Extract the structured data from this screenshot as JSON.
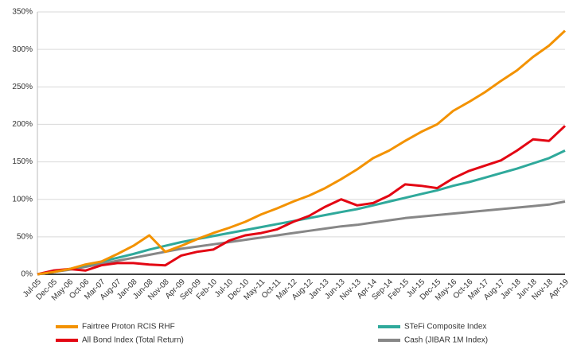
{
  "chart_data": {
    "type": "line",
    "categories": [
      "Jul-05",
      "Dec-05",
      "May-06",
      "Oct-06",
      "Mar-07",
      "Aug-07",
      "Jan-08",
      "Jun-08",
      "Nov-08",
      "Apr-09",
      "Sep-09",
      "Feb-10",
      "Jul-10",
      "Dec-10",
      "May-11",
      "Oct-11",
      "Mar-12",
      "Aug-12",
      "Jan-13",
      "Jun-13",
      "Nov-13",
      "Apr-14",
      "Sep-14",
      "Feb-15",
      "Jul-15",
      "Dec-15",
      "May-16",
      "Oct-16",
      "Mar-17",
      "Aug-17",
      "Jan-18",
      "Jun-18",
      "Nov-18",
      "Apr-19"
    ],
    "series": [
      {
        "name": "Fairtree Proton RCIS RHF",
        "color": "#f39200",
        "values": [
          0,
          3,
          7,
          13,
          17,
          27,
          38,
          52,
          30,
          38,
          47,
          55,
          62,
          70,
          80,
          88,
          97,
          105,
          115,
          127,
          140,
          155,
          165,
          178,
          190,
          200,
          218,
          230,
          243,
          258,
          272,
          290,
          305,
          325
        ]
      },
      {
        "name": "STeFi Composite Index",
        "color": "#2fa99b",
        "values": [
          0,
          3,
          7,
          12,
          17,
          22,
          27,
          33,
          38,
          43,
          47,
          51,
          55,
          59,
          63,
          67,
          71,
          75,
          79,
          83,
          87,
          92,
          97,
          102,
          107,
          112,
          118,
          123,
          129,
          135,
          141,
          148,
          155,
          165
        ]
      },
      {
        "name": "All Bond Index (Total Return)",
        "color": "#e30613",
        "values": [
          0,
          5,
          7,
          5,
          12,
          15,
          15,
          13,
          12,
          25,
          30,
          33,
          45,
          52,
          55,
          60,
          70,
          78,
          90,
          100,
          92,
          95,
          105,
          120,
          118,
          115,
          128,
          138,
          145,
          152,
          165,
          180,
          178,
          198
        ]
      },
      {
        "name": "Cash (JIBAR 1M Index)",
        "color": "#878787",
        "values": [
          0,
          3,
          6,
          10,
          14,
          18,
          22,
          26,
          30,
          34,
          37,
          40,
          43,
          46,
          49,
          52,
          55,
          58,
          61,
          64,
          66,
          69,
          72,
          75,
          77,
          79,
          81,
          83,
          85,
          87,
          89,
          91,
          93,
          97
        ]
      }
    ],
    "ylim": [
      0,
      350
    ],
    "yticks": [
      {
        "value": 0,
        "label": "0%"
      },
      {
        "value": 50,
        "label": "50%"
      },
      {
        "value": 100,
        "label": "100%"
      },
      {
        "value": 150,
        "label": "150%"
      },
      {
        "value": 200,
        "label": "200%"
      },
      {
        "value": 250,
        "label": "250%"
      },
      {
        "value": 300,
        "label": "300%"
      },
      {
        "value": 350,
        "label": "350%"
      }
    ],
    "grid": true
  }
}
